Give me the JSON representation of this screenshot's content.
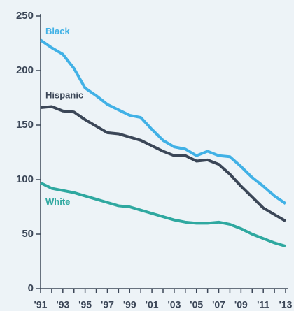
{
  "chart_data": {
    "type": "line",
    "categories": [
      "'91",
      null,
      "'93",
      null,
      "'95",
      null,
      "'97",
      null,
      "'99",
      null,
      "'01",
      null,
      "'03",
      null,
      "'05",
      null,
      "'07",
      null,
      "'09",
      null,
      "'11",
      null,
      "'13"
    ],
    "series": [
      {
        "name": "Black",
        "color": "#41b1e6",
        "values": [
          228,
          221,
          215,
          202,
          184,
          177,
          169,
          164,
          159,
          157,
          146,
          136,
          130,
          128,
          122,
          126,
          122,
          121,
          112,
          102,
          94,
          85,
          78
        ]
      },
      {
        "name": "Hispanic",
        "color": "#3b4657",
        "values": [
          166,
          167,
          163,
          162,
          155,
          149,
          143,
          142,
          139,
          136,
          131,
          126,
          122,
          122,
          117,
          118,
          114,
          105,
          94,
          84,
          74,
          68,
          62
        ]
      },
      {
        "name": "White",
        "color": "#2fa8a0",
        "values": [
          97,
          92,
          90,
          88,
          85,
          82,
          79,
          76,
          75,
          72,
          69,
          66,
          63,
          61,
          60,
          60,
          61,
          59,
          55,
          50,
          46,
          42,
          39
        ]
      }
    ],
    "ylim": [
      0,
      250
    ],
    "yticks": [
      0,
      50,
      100,
      150,
      200,
      250
    ],
    "grid": false
  }
}
